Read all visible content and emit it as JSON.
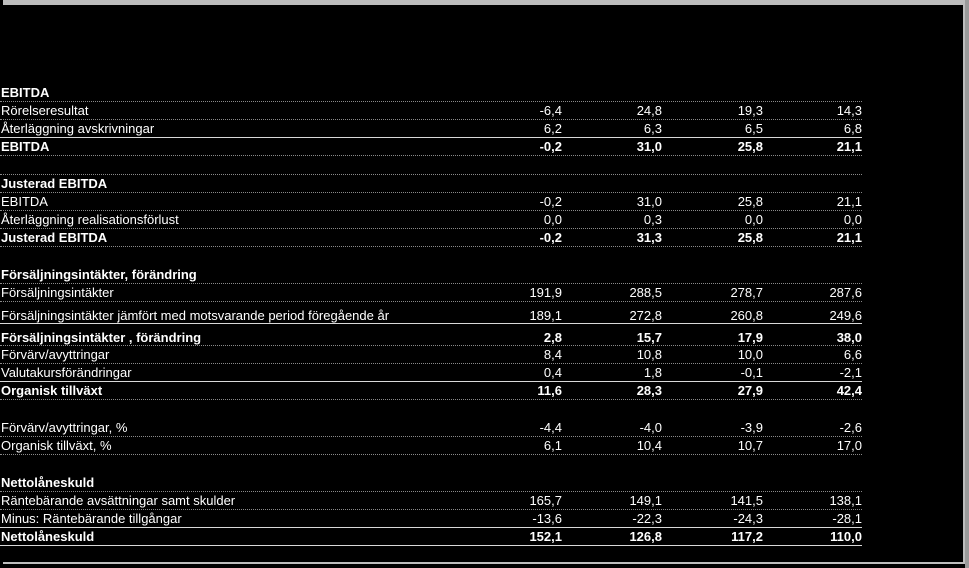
{
  "rows": [
    {
      "type": "header",
      "label": "EBITDA",
      "values": [
        "",
        "",
        "",
        ""
      ]
    },
    {
      "type": "normal",
      "label": "Rörelseresultat",
      "values": [
        "-6,4",
        "24,8",
        "19,3",
        "14,3"
      ]
    },
    {
      "type": "normal-solid",
      "label": "Återläggning  avskrivningar",
      "values": [
        "6,2",
        "6,3",
        "6,5",
        "6,8"
      ]
    },
    {
      "type": "bold",
      "label": "EBITDA",
      "values": [
        "-0,2",
        "31,0",
        "25,8",
        "21,1"
      ]
    },
    {
      "type": "spacer",
      "label": "",
      "values": [
        "",
        "",
        "",
        ""
      ]
    },
    {
      "type": "header",
      "label": "Justerad EBITDA",
      "values": [
        "",
        "",
        "",
        ""
      ]
    },
    {
      "type": "normal",
      "label": "EBITDA",
      "values": [
        "-0,2",
        "31,0",
        "25,8",
        "21,1"
      ]
    },
    {
      "type": "normal",
      "label": "Återläggning  realisationsförlust",
      "values": [
        "0,0",
        "0,3",
        "0,0",
        "0,0"
      ]
    },
    {
      "type": "bold",
      "label": "Justerad EBITDA",
      "values": [
        "-0,2",
        "31,3",
        "25,8",
        "21,1"
      ]
    },
    {
      "type": "spacer-big",
      "label": "",
      "values": [
        "",
        "",
        "",
        ""
      ]
    },
    {
      "type": "header",
      "label": "Försäljningsintäkter, förändring",
      "values": [
        "",
        "",
        "",
        ""
      ]
    },
    {
      "type": "normal",
      "label": "Försäljningsintäkter",
      "values": [
        "191,9",
        "288,5",
        "278,7",
        "287,6"
      ]
    },
    {
      "type": "tall-solid",
      "label": "Försäljningsintäkter jämfört med motsvarande period föregående år",
      "values": [
        "189,1",
        "272,8",
        "260,8",
        "249,6"
      ]
    },
    {
      "type": "tall-bold",
      "label": "Försäljningsintäkter , förändring",
      "values": [
        "2,8",
        "15,7",
        "17,9",
        "38,0"
      ]
    },
    {
      "type": "normal",
      "label": "Förvärv/avyttringar",
      "values": [
        "8,4",
        "10,8",
        "10,0",
        "6,6"
      ]
    },
    {
      "type": "normal-solid",
      "label": "Valutakursförändringar",
      "values": [
        "0,4",
        "1,8",
        "-0,1",
        "-2,1"
      ]
    },
    {
      "type": "bold",
      "label": "Organisk tillväxt",
      "values": [
        "11,6",
        "28,3",
        "27,9",
        "42,4"
      ]
    },
    {
      "type": "spacer-big",
      "label": "",
      "values": [
        "",
        "",
        "",
        ""
      ]
    },
    {
      "type": "normal",
      "label": "Förvärv/avyttringar,   %",
      "values": [
        "-4,4",
        "-4,0",
        "-3,9",
        "-2,6"
      ]
    },
    {
      "type": "normal",
      "label": "Organisk tillväxt,  %",
      "values": [
        "6,1",
        "10,4",
        "10,7",
        "17,0"
      ]
    },
    {
      "type": "spacer-big",
      "label": "",
      "values": [
        "",
        "",
        "",
        ""
      ]
    },
    {
      "type": "header",
      "label": "Nettolåneskuld",
      "values": [
        "",
        "",
        "",
        ""
      ]
    },
    {
      "type": "normal",
      "label": "Räntebärande  avsättningar samt skulder",
      "values": [
        "165,7",
        "149,1",
        "141,5",
        "138,1"
      ]
    },
    {
      "type": "normal-solid",
      "label": "Minus:  Räntebärande tillgångar",
      "values": [
        "-13,6",
        "-22,3",
        "-24,3",
        "-28,1"
      ]
    },
    {
      "type": "bold-solid",
      "label": "Nettolåneskuld",
      "values": [
        "152,1",
        "126,8",
        "117,2",
        "110,0"
      ]
    }
  ]
}
